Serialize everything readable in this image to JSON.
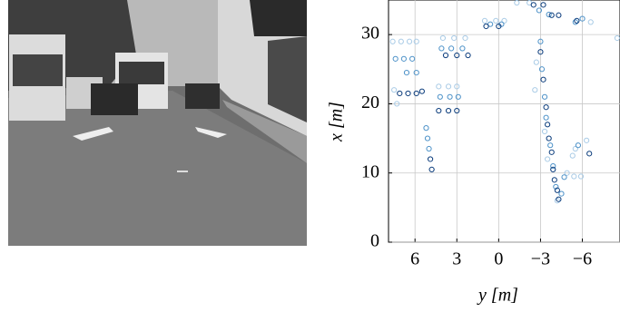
{
  "chart_data": {
    "type": "scatter",
    "x_label": "y [m]",
    "y_label": "x [m]",
    "xlim": [
      7.9,
      -8.7
    ],
    "xticks": [
      6,
      3,
      0,
      {
        "value": -3,
        "label": "−3"
      },
      {
        "value": -6,
        "label": "−6"
      }
    ],
    "ylim": [
      0,
      35
    ],
    "yticks": [
      0,
      10,
      20,
      30
    ],
    "grid": true,
    "series": [
      {
        "color": "#a9cbe6",
        "x": [
          7.6,
          7.0,
          6.4,
          5.9,
          7.5,
          7.3,
          4.0,
          3.2,
          2.4,
          4.3,
          3.6,
          3.0,
          1.0,
          0.2,
          -0.4,
          -1.3,
          -2.2,
          -2.6,
          -2.7,
          -4.9,
          -5.4,
          -5.9,
          -5.5,
          -6.3,
          -5.3,
          -8.5,
          -6.6,
          -3.5,
          -3.3,
          -4.2
        ],
        "values": [
          29.0,
          29.0,
          29.0,
          29.0,
          22.0,
          20.0,
          29.5,
          29.5,
          29.5,
          22.5,
          22.5,
          22.5,
          32.0,
          32.0,
          32.0,
          34.6,
          34.6,
          22.0,
          26.0,
          10.0,
          9.5,
          9.5,
          13.5,
          14.7,
          12.5,
          29.5,
          31.8,
          12.0,
          16.0,
          6.0
        ]
      },
      {
        "color": "#4f93c9",
        "x": [
          7.4,
          6.8,
          6.2,
          5.9,
          6.6,
          4.1,
          3.4,
          2.6,
          4.2,
          3.5,
          2.9,
          5.2,
          5.1,
          5.0,
          0.6,
          -0.2,
          -2.9,
          -3.6,
          -3.0,
          -3.1,
          -3.3,
          -3.4,
          -3.7,
          -3.9,
          -4.1,
          -5.5,
          -6.0,
          -5.7,
          -4.7,
          -4.5
        ],
        "values": [
          26.5,
          26.5,
          26.5,
          24.5,
          24.5,
          28.0,
          28.0,
          28.0,
          21.0,
          21.0,
          21.0,
          16.5,
          15.0,
          13.5,
          31.5,
          31.5,
          33.5,
          32.9,
          29.0,
          25.0,
          21.0,
          18.0,
          14.0,
          11.0,
          8.0,
          31.8,
          32.3,
          14.0,
          9.4,
          7.0
        ]
      },
      {
        "color": "#0b3c7c",
        "x": [
          7.1,
          6.5,
          5.9,
          5.5,
          3.8,
          3.0,
          2.2,
          4.3,
          3.6,
          3.0,
          4.9,
          4.8,
          0.9,
          0.0,
          -2.5,
          -3.2,
          -3.8,
          -4.3,
          -3.0,
          -3.2,
          -3.4,
          -3.5,
          -3.6,
          -3.8,
          -3.9,
          -4.0,
          -4.2,
          -4.3,
          -5.6,
          -6.5
        ],
        "values": [
          21.5,
          21.5,
          21.5,
          21.8,
          27.0,
          27.0,
          27.0,
          19.0,
          19.0,
          19.0,
          12.0,
          10.5,
          31.2,
          31.2,
          34.3,
          34.3,
          32.8,
          32.8,
          27.5,
          23.5,
          19.5,
          17.0,
          15.0,
          13.0,
          10.5,
          9.0,
          7.5,
          6.2,
          32.0,
          12.8
        ]
      }
    ]
  }
}
